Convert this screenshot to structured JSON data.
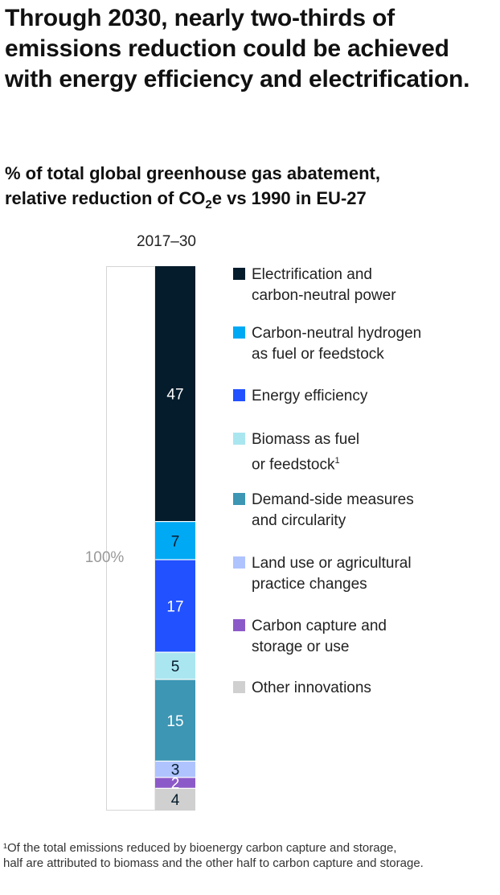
{
  "title": "Through 2030, nearly two-thirds of emissions reduction could be achieved with energy efficiency and electrification.",
  "subtitle": {
    "part1": "% of total global greenhouse gas abatement,",
    "part2": "relative reduction of CO",
    "sub": "2",
    "part3": "e vs 1990 in EU-27"
  },
  "chart_data": {
    "type": "bar",
    "stacked": true,
    "categories": [
      "2017–30"
    ],
    "total_label": "100%",
    "series": [
      {
        "name": "Electrification and\ncarbon-neutral power",
        "values": [
          47
        ],
        "color": "#051c2c"
      },
      {
        "name": "Carbon-neutral hydrogen\nas fuel or feedstock",
        "values": [
          7
        ],
        "color": "#00a9f4"
      },
      {
        "name": "Energy efficiency",
        "values": [
          17
        ],
        "color": "#2251ff"
      },
      {
        "name": "Biomass as fuel\nor feedstock",
        "sup": "1",
        "values": [
          5
        ],
        "color": "#aae6f0"
      },
      {
        "name": "Demand-side measures\nand circularity",
        "values": [
          15
        ],
        "color": "#3c96b4"
      },
      {
        "name": "Land use or agricultural\npractice changes",
        "values": [
          3
        ],
        "color": "#afc3ff"
      },
      {
        "name": "Carbon capture and\nstorage or use",
        "values": [
          2
        ],
        "color": "#8c5ac8"
      },
      {
        "name": "Other innovations",
        "values": [
          4
        ],
        "color": "#d0d0d0"
      }
    ],
    "legend": "right",
    "grid": false
  },
  "footnote": "¹Of the total emissions reduced by bioenergy carbon capture and storage,\n half are attributed to biomass and the other half to carbon capture and storage."
}
